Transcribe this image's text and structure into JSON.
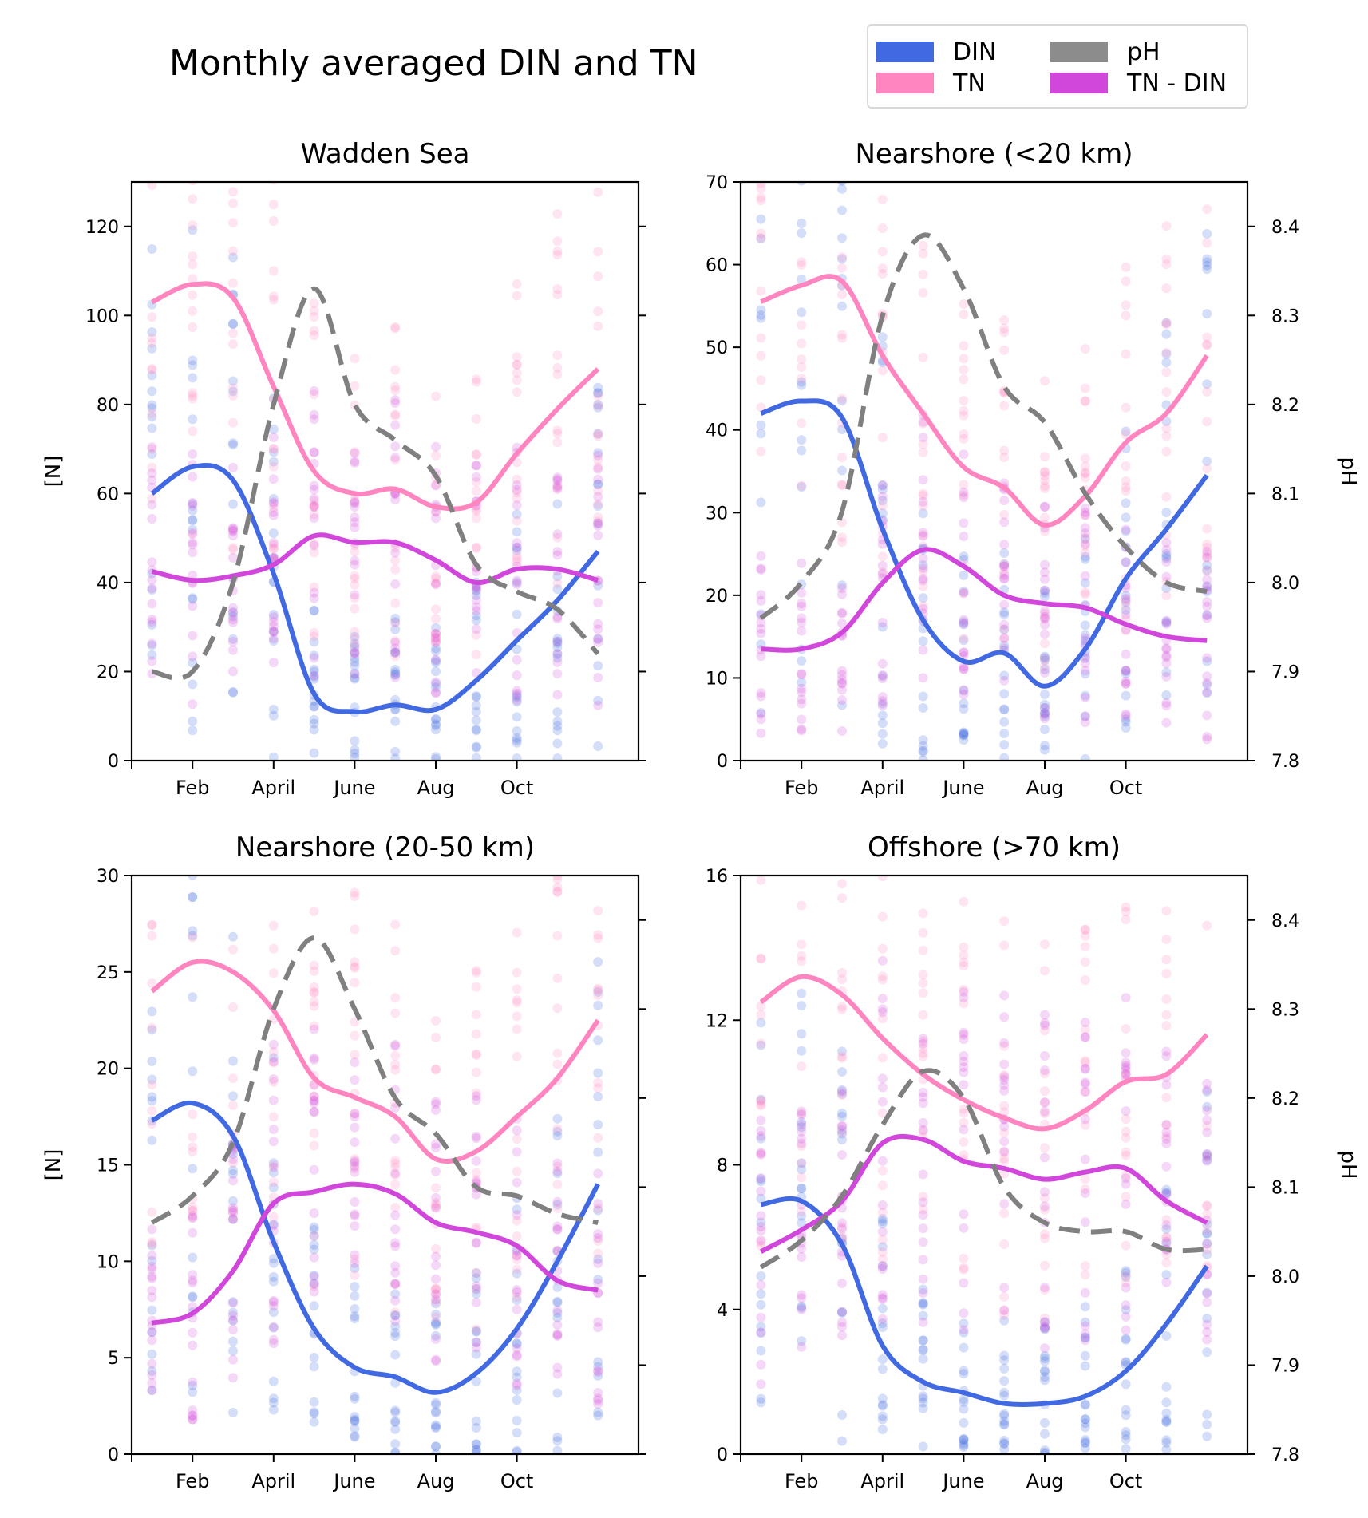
{
  "title": "Monthly averaged DIN and TN",
  "legend": {
    "items": [
      {
        "label": "DIN",
        "color": "#4169e1"
      },
      {
        "label": "pH",
        "color": "#8c8c8c"
      },
      {
        "label": "TN",
        "color": "#ff85c0"
      },
      {
        "label": "TN - DIN",
        "color": "#d147dc"
      }
    ]
  },
  "chart_data": [
    {
      "type": "line",
      "title": "Wadden Sea",
      "ylabel": "[N]",
      "y2label": "",
      "ylim": [
        0,
        130
      ],
      "yticks": [
        0,
        20,
        40,
        60,
        80,
        100,
        120
      ],
      "y2lim": [
        7.8,
        8.45
      ],
      "y2ticks": [
        7.8,
        7.9,
        8.0,
        8.1,
        8.2,
        8.3,
        8.4
      ],
      "y2_ticklabels_visible": false,
      "xlim": [
        -0.5,
        12.0
      ],
      "xticks": [
        {
          "x": 1,
          "label": "Feb"
        },
        {
          "x": 3,
          "label": "April"
        },
        {
          "x": 5,
          "label": "June"
        },
        {
          "x": 7,
          "label": "Aug"
        },
        {
          "x": 9,
          "label": "Oct"
        }
      ],
      "x": [
        0,
        1,
        2,
        3,
        4,
        5,
        6,
        7,
        8,
        9,
        10,
        11
      ],
      "series": [
        {
          "name": "DIN",
          "axis": "left",
          "color": "#4169e1",
          "values": [
            60,
            66,
            63,
            42,
            15,
            11,
            12.5,
            11.5,
            18,
            27,
            36,
            47
          ]
        },
        {
          "name": "TN",
          "axis": "left",
          "color": "#ff85c0",
          "values": [
            103,
            107,
            104,
            84,
            65,
            60,
            61,
            57,
            58,
            69,
            79,
            88
          ]
        },
        {
          "name": "TN - DIN",
          "axis": "left",
          "color": "#d147dc",
          "values": [
            42.5,
            40.5,
            41.5,
            44,
            50.5,
            49,
            49,
            45,
            40,
            43,
            43,
            40.5
          ]
        },
        {
          "name": "pH",
          "axis": "right",
          "color": "#808080",
          "dash": true,
          "values": [
            7.9,
            7.9,
            8.0,
            8.2,
            8.33,
            8.2,
            8.16,
            8.12,
            8.02,
            7.99,
            7.97,
            7.92
          ]
        }
      ]
    },
    {
      "type": "line",
      "title": "Nearshore (<20 km)",
      "ylabel": "",
      "y2label": "pH",
      "ylim": [
        0,
        70
      ],
      "yticks": [
        0,
        10,
        20,
        30,
        40,
        50,
        60,
        70
      ],
      "y2lim": [
        7.8,
        8.45
      ],
      "y2ticks": [
        7.8,
        7.9,
        8.0,
        8.1,
        8.2,
        8.3,
        8.4
      ],
      "y2_ticklabels_visible": true,
      "xlim": [
        -0.5,
        12.0
      ],
      "xticks": [
        {
          "x": 1,
          "label": "Feb"
        },
        {
          "x": 3,
          "label": "April"
        },
        {
          "x": 5,
          "label": "June"
        },
        {
          "x": 7,
          "label": "Aug"
        },
        {
          "x": 9,
          "label": "Oct"
        }
      ],
      "x": [
        0,
        1,
        2,
        3,
        4,
        5,
        6,
        7,
        8,
        9,
        10,
        11
      ],
      "series": [
        {
          "name": "DIN",
          "axis": "left",
          "color": "#4169e1",
          "values": [
            42,
            43.5,
            41.5,
            28,
            17,
            12,
            13,
            9,
            13.5,
            22,
            28,
            34.5
          ]
        },
        {
          "name": "TN",
          "axis": "left",
          "color": "#ff85c0",
          "values": [
            55.5,
            57.5,
            58,
            49,
            42,
            35.5,
            33,
            28.5,
            32,
            38.5,
            42,
            49
          ]
        },
        {
          "name": "TN - DIN",
          "axis": "left",
          "color": "#d147dc",
          "values": [
            13.5,
            13.5,
            15.5,
            21.5,
            25.5,
            23.5,
            20,
            19,
            18.5,
            16.5,
            15,
            14.5
          ]
        },
        {
          "name": "pH",
          "axis": "right",
          "color": "#808080",
          "dash": true,
          "values": [
            7.96,
            8.0,
            8.08,
            8.3,
            8.39,
            8.33,
            8.22,
            8.18,
            8.1,
            8.04,
            8.0,
            7.99
          ]
        }
      ]
    },
    {
      "type": "line",
      "title": "Nearshore (20-50 km)",
      "ylabel": "[N]",
      "y2label": "",
      "ylim": [
        0,
        30
      ],
      "yticks": [
        0,
        5,
        10,
        15,
        20,
        25,
        30
      ],
      "y2lim": [
        7.8,
        8.45
      ],
      "y2ticks": [
        7.8,
        7.9,
        8.0,
        8.1,
        8.2,
        8.3,
        8.4
      ],
      "y2_ticklabels_visible": false,
      "xlim": [
        -0.5,
        12.0
      ],
      "xticks": [
        {
          "x": 1,
          "label": "Feb"
        },
        {
          "x": 3,
          "label": "April"
        },
        {
          "x": 5,
          "label": "June"
        },
        {
          "x": 7,
          "label": "Aug"
        },
        {
          "x": 9,
          "label": "Oct"
        }
      ],
      "x": [
        0,
        1,
        2,
        3,
        4,
        5,
        6,
        7,
        8,
        9,
        10,
        11
      ],
      "series": [
        {
          "name": "DIN",
          "axis": "left",
          "color": "#4169e1",
          "values": [
            17.3,
            18.2,
            16.5,
            11,
            6.5,
            4.5,
            4,
            3.2,
            4.2,
            6.5,
            10,
            14
          ]
        },
        {
          "name": "TN",
          "axis": "left",
          "color": "#ff85c0",
          "values": [
            24,
            25.5,
            25,
            23,
            19.5,
            18.5,
            17.5,
            15.3,
            15.7,
            17.5,
            19.5,
            22.5
          ]
        },
        {
          "name": "TN - DIN",
          "axis": "left",
          "color": "#d147dc",
          "values": [
            6.8,
            7.3,
            9.5,
            13,
            13.6,
            14,
            13.5,
            12,
            11.5,
            10.8,
            9,
            8.5
          ]
        },
        {
          "name": "pH",
          "axis": "right",
          "color": "#808080",
          "dash": true,
          "values": [
            8.06,
            8.09,
            8.15,
            8.3,
            8.38,
            8.3,
            8.2,
            8.16,
            8.1,
            8.09,
            8.07,
            8.06
          ]
        }
      ]
    },
    {
      "type": "line",
      "title": "Offshore (>70 km)",
      "ylabel": "",
      "y2label": "pH",
      "ylim": [
        0,
        16
      ],
      "yticks": [
        0,
        4,
        8,
        12,
        16
      ],
      "y2lim": [
        7.8,
        8.45
      ],
      "y2ticks": [
        7.8,
        7.9,
        8.0,
        8.1,
        8.2,
        8.3,
        8.4
      ],
      "y2_ticklabels_visible": true,
      "xlim": [
        -0.5,
        12.0
      ],
      "xticks": [
        {
          "x": 1,
          "label": "Feb"
        },
        {
          "x": 3,
          "label": "April"
        },
        {
          "x": 5,
          "label": "June"
        },
        {
          "x": 7,
          "label": "Aug"
        },
        {
          "x": 9,
          "label": "Oct"
        }
      ],
      "x": [
        0,
        1,
        2,
        3,
        4,
        5,
        6,
        7,
        8,
        9,
        10,
        11
      ],
      "series": [
        {
          "name": "DIN",
          "axis": "left",
          "color": "#4169e1",
          "values": [
            6.9,
            7.0,
            5.8,
            3.0,
            2.0,
            1.7,
            1.4,
            1.4,
            1.6,
            2.3,
            3.6,
            5.2
          ]
        },
        {
          "name": "TN",
          "axis": "left",
          "color": "#ff85c0",
          "values": [
            12.5,
            13.2,
            12.7,
            11.5,
            10.5,
            9.8,
            9.3,
            9.0,
            9.5,
            10.3,
            10.5,
            11.6
          ]
        },
        {
          "name": "TN - DIN",
          "axis": "left",
          "color": "#d147dc",
          "values": [
            5.6,
            6.2,
            7.0,
            8.6,
            8.7,
            8.1,
            7.9,
            7.6,
            7.8,
            7.9,
            7.0,
            6.4
          ]
        },
        {
          "name": "pH",
          "axis": "right",
          "color": "#808080",
          "dash": true,
          "values": [
            8.01,
            8.04,
            8.09,
            8.17,
            8.23,
            8.2,
            8.1,
            8.06,
            8.05,
            8.05,
            8.03,
            8.03
          ]
        }
      ]
    }
  ]
}
